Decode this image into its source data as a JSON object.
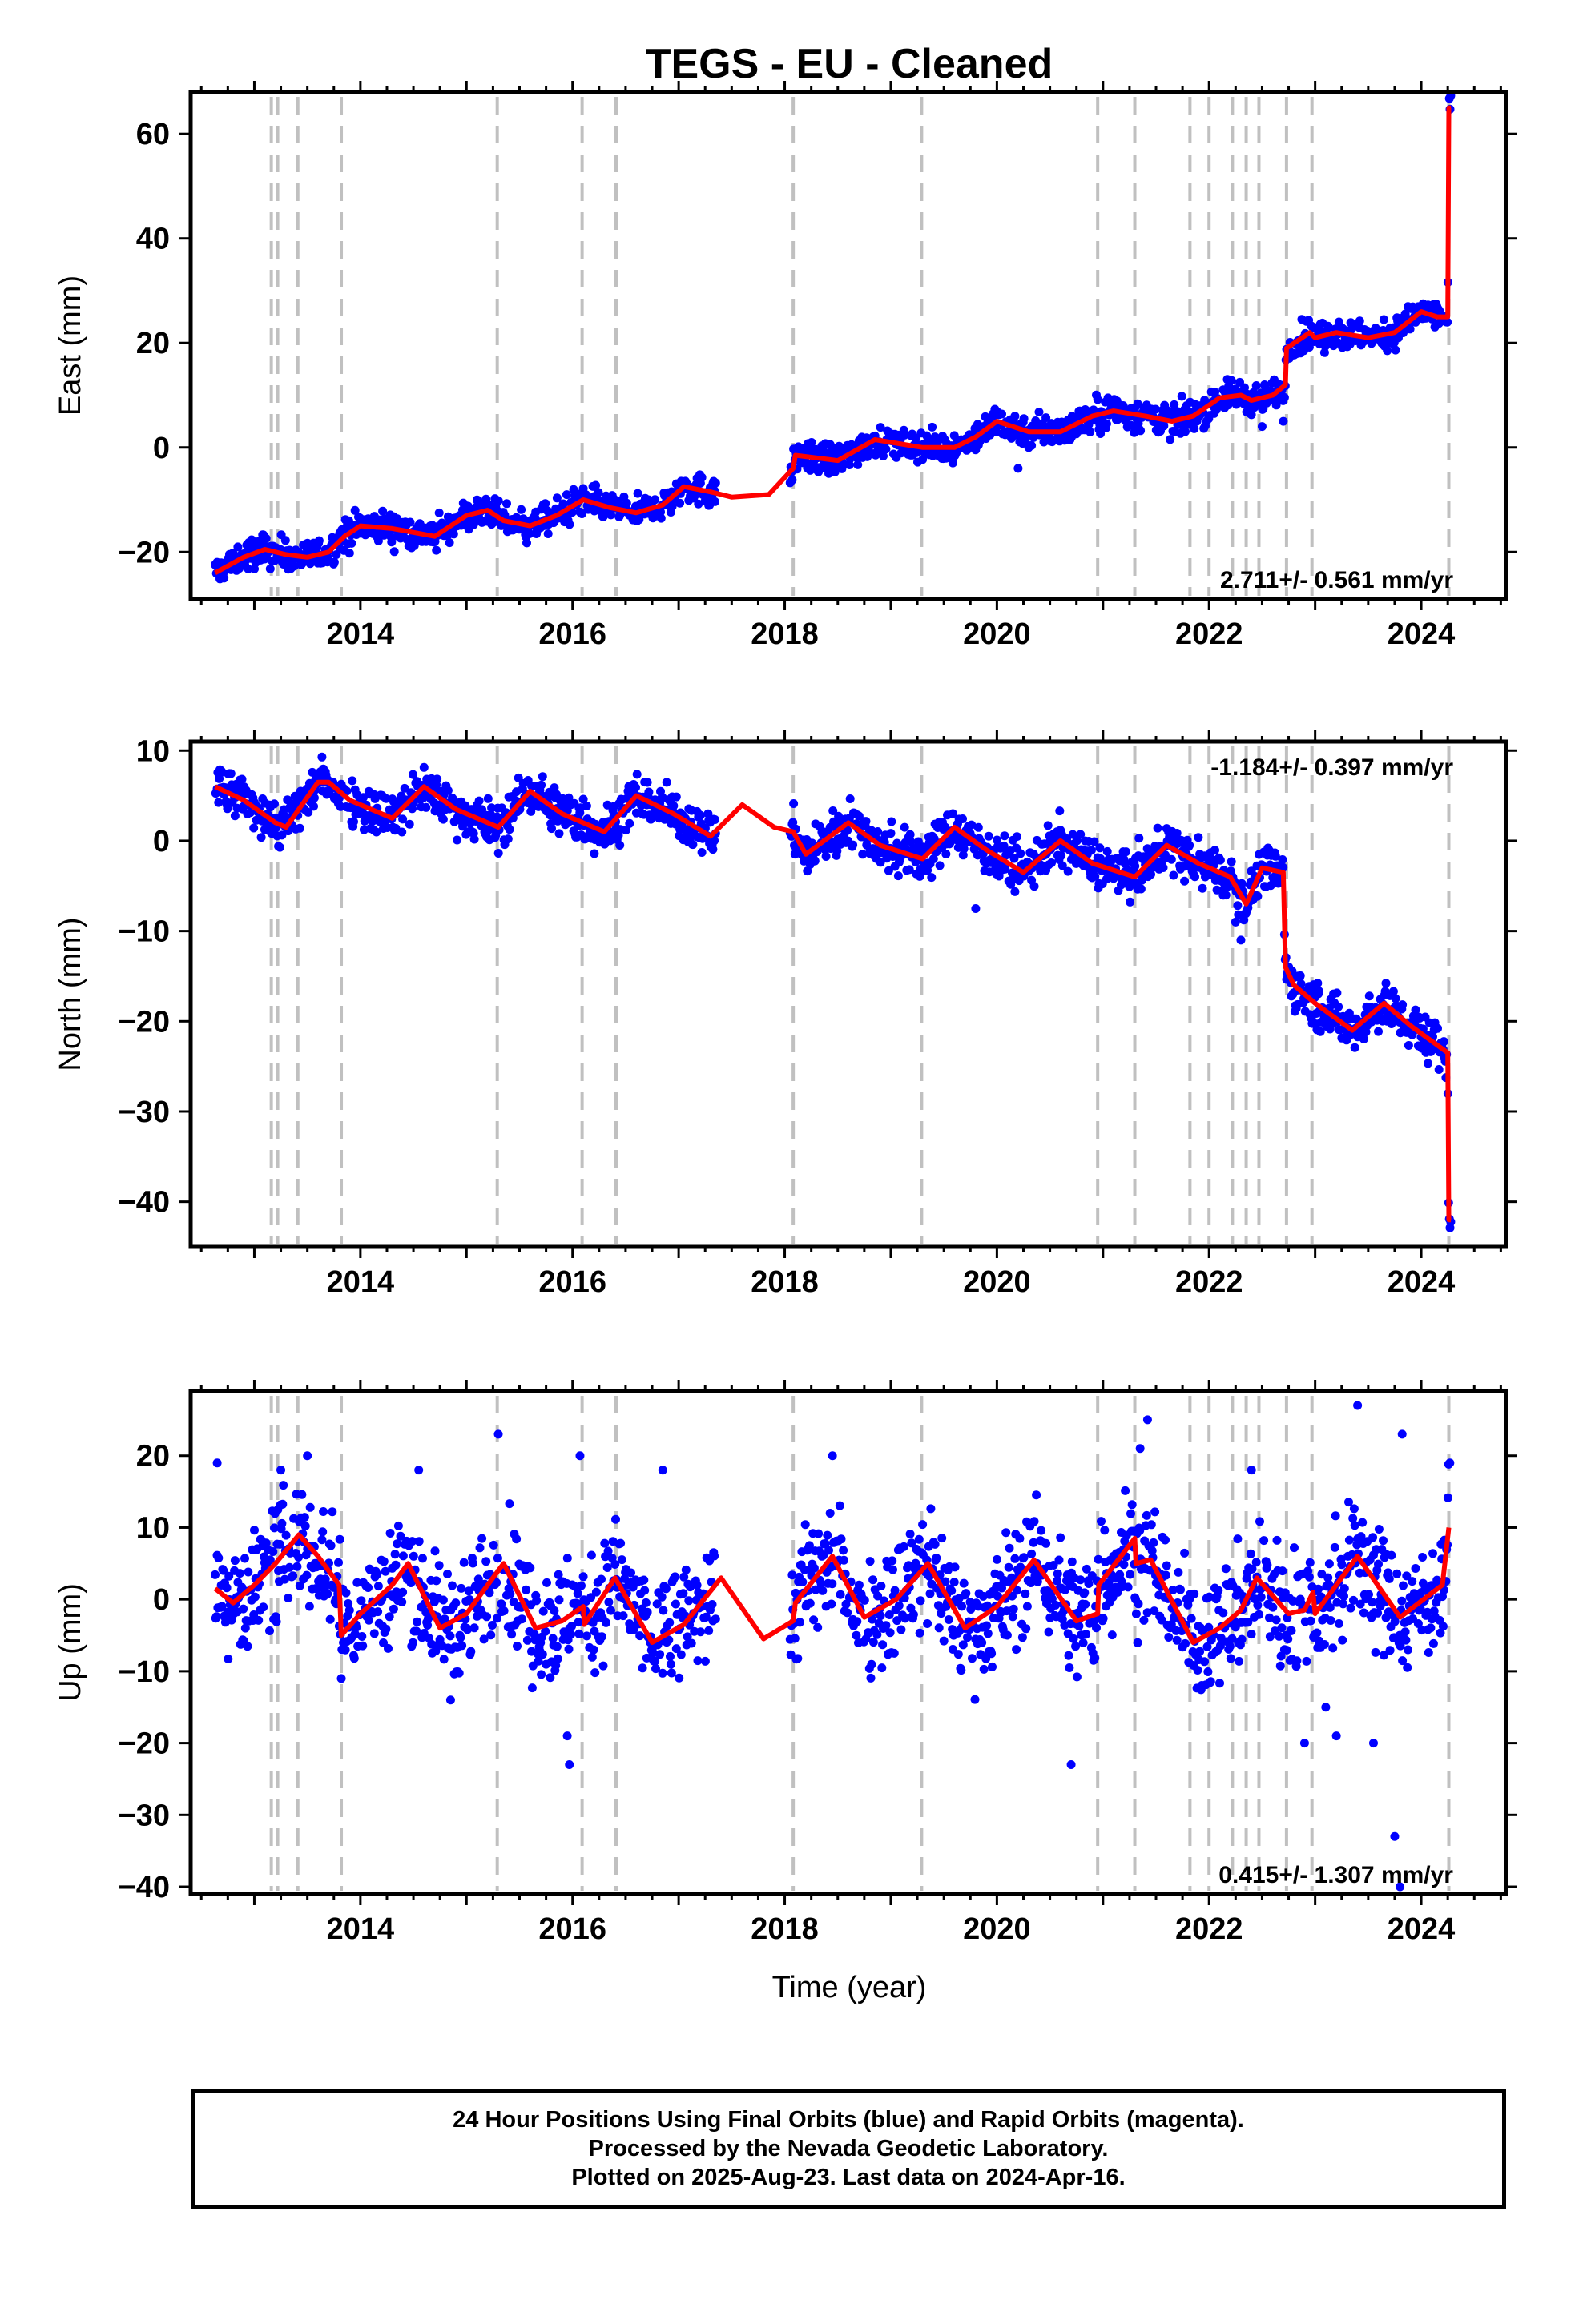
{
  "title": "TEGS  - EU - Cleaned",
  "x_axis_label": "Time (year)",
  "footer": {
    "line1": "24 Hour Positions Using Final Orbits (blue) and Rapid Orbits (magenta).",
    "line2": "Processed by the Nevada Geodetic Laboratory.",
    "line3": "Plotted on 2025-Aug-23. Last data on 2024-Apr-16."
  },
  "colors": {
    "data_points": "#0000ff",
    "model_fit": "#ff0000",
    "event_lines": "#c0c0c0",
    "axes": "#000000"
  },
  "chart_data": [
    {
      "type": "scatter",
      "component": "East",
      "ylabel": "East (mm)",
      "xlim": [
        2012.4,
        2024.8
      ],
      "ylim": [
        -29,
        68
      ],
      "yticks": [
        -20,
        0,
        20,
        40,
        60
      ],
      "xticks": [
        2014,
        2016,
        2018,
        2020,
        2022,
        2024
      ],
      "rate_text": "2.711+/- 0.561 mm/yr",
      "rate_position": "bottom-right",
      "noise": 1.5,
      "outliers": [
        [
          2020.2,
          -4
        ],
        [
          2022.5,
          4
        ],
        [
          2022.7,
          5
        ]
      ],
      "model": [
        [
          2012.63,
          -24
        ],
        [
          2012.9,
          -21
        ],
        [
          2013.1,
          -19.5
        ],
        [
          2013.3,
          -20.5
        ],
        [
          2013.5,
          -21
        ],
        [
          2013.7,
          -20
        ],
        [
          2013.85,
          -17
        ],
        [
          2014.0,
          -15
        ],
        [
          2014.3,
          -15.5
        ],
        [
          2014.7,
          -17
        ],
        [
          2015.0,
          -13
        ],
        [
          2015.2,
          -12
        ],
        [
          2015.35,
          -14
        ],
        [
          2015.6,
          -15
        ],
        [
          2015.85,
          -13
        ],
        [
          2016.1,
          -10
        ],
        [
          2016.35,
          -11.5
        ],
        [
          2016.6,
          -12.5
        ],
        [
          2016.85,
          -11
        ],
        [
          2017.05,
          -7.5
        ],
        [
          2017.3,
          -8.5
        ],
        [
          2017.5,
          -9.5
        ],
        [
          2017.85,
          -9
        ],
        [
          2018.08,
          -4
        ],
        [
          2018.1,
          -1.5
        ],
        [
          2018.5,
          -2.5
        ],
        [
          2018.85,
          1.5
        ],
        [
          2019.3,
          0
        ],
        [
          2019.6,
          0
        ],
        [
          2019.8,
          2
        ],
        [
          2020.0,
          5
        ],
        [
          2020.3,
          3
        ],
        [
          2020.6,
          3
        ],
        [
          2020.9,
          6
        ],
        [
          2021.1,
          7
        ],
        [
          2021.4,
          6
        ],
        [
          2021.65,
          5
        ],
        [
          2021.85,
          6
        ],
        [
          2022.1,
          9.5
        ],
        [
          2022.3,
          10
        ],
        [
          2022.4,
          9
        ],
        [
          2022.6,
          10
        ],
        [
          2022.72,
          12
        ],
        [
          2022.73,
          19
        ],
        [
          2022.95,
          22
        ],
        [
          2023.0,
          21
        ],
        [
          2023.2,
          22
        ],
        [
          2023.5,
          21
        ],
        [
          2023.75,
          22
        ],
        [
          2024.0,
          26
        ],
        [
          2024.15,
          25
        ],
        [
          2024.25,
          25
        ],
        [
          2024.26,
          65
        ],
        [
          2024.28,
          65
        ]
      ],
      "gaps": [
        [
          2017.35,
          2018.05
        ]
      ],
      "event_lines": [
        2013.16,
        2013.22,
        2013.41,
        2013.82,
        2015.29,
        2016.09,
        2016.41,
        2018.08,
        2019.29,
        2020.95,
        2021.3,
        2021.82,
        2022.0,
        2022.22,
        2022.35,
        2022.47,
        2022.73,
        2022.97,
        2024.26
      ]
    },
    {
      "type": "scatter",
      "component": "North",
      "ylabel": "North (mm)",
      "xlim": [
        2012.4,
        2024.8
      ],
      "ylim": [
        -45,
        11
      ],
      "yticks": [
        -40,
        -30,
        -20,
        -10,
        0,
        10
      ],
      "xticks": [
        2014,
        2016,
        2018,
        2020,
        2022,
        2024
      ],
      "rate_text": "-1.184+/- 0.397 mm/yr",
      "rate_position": "top-right",
      "noise": 1.3,
      "outliers": [
        [
          2019.8,
          -7.5
        ],
        [
          2022.25,
          -9
        ],
        [
          2022.3,
          -11
        ]
      ],
      "model": [
        [
          2012.63,
          6
        ],
        [
          2012.9,
          4.5
        ],
        [
          2013.2,
          2
        ],
        [
          2013.3,
          1.5
        ],
        [
          2013.6,
          6.5
        ],
        [
          2013.7,
          6.5
        ],
        [
          2013.9,
          4.5
        ],
        [
          2014.3,
          2.5
        ],
        [
          2014.6,
          6
        ],
        [
          2014.9,
          3.5
        ],
        [
          2015.3,
          1.5
        ],
        [
          2015.6,
          5.5
        ],
        [
          2015.9,
          3
        ],
        [
          2016.3,
          1
        ],
        [
          2016.6,
          5
        ],
        [
          2016.95,
          3
        ],
        [
          2017.3,
          0.5
        ],
        [
          2017.6,
          4
        ],
        [
          2017.9,
          1.5
        ],
        [
          2018.08,
          1
        ],
        [
          2018.2,
          -1.5
        ],
        [
          2018.6,
          2
        ],
        [
          2018.9,
          -0.5
        ],
        [
          2019.3,
          -2
        ],
        [
          2019.6,
          1.5
        ],
        [
          2019.9,
          -1
        ],
        [
          2020.25,
          -3.5
        ],
        [
          2020.6,
          0
        ],
        [
          2020.9,
          -2.5
        ],
        [
          2021.3,
          -4
        ],
        [
          2021.6,
          -0.5
        ],
        [
          2021.9,
          -2.5
        ],
        [
          2022.2,
          -4
        ],
        [
          2022.35,
          -7
        ],
        [
          2022.5,
          -3
        ],
        [
          2022.7,
          -3.5
        ],
        [
          2022.72,
          -14
        ],
        [
          2022.8,
          -16
        ],
        [
          2023.0,
          -18
        ],
        [
          2023.35,
          -21
        ],
        [
          2023.65,
          -18
        ],
        [
          2023.9,
          -20.5
        ],
        [
          2024.25,
          -23.5
        ],
        [
          2024.26,
          -42
        ],
        [
          2024.28,
          -42
        ]
      ],
      "gaps": [
        [
          2017.35,
          2018.05
        ]
      ],
      "event_lines": [
        2013.16,
        2013.22,
        2013.41,
        2013.82,
        2015.29,
        2016.09,
        2016.41,
        2018.08,
        2019.29,
        2020.95,
        2021.3,
        2021.82,
        2022.0,
        2022.22,
        2022.35,
        2022.47,
        2022.73,
        2022.97,
        2024.26
      ]
    },
    {
      "type": "scatter",
      "component": "Up",
      "ylabel": "Up (mm)",
      "xlim": [
        2012.4,
        2024.8
      ],
      "ylim": [
        -41,
        29
      ],
      "yticks": [
        -40,
        -30,
        -20,
        -10,
        0,
        10,
        20
      ],
      "xticks": [
        2014,
        2016,
        2018,
        2020,
        2022,
        2024
      ],
      "rate_text": "0.415+/- 1.307 mm/yr",
      "rate_position": "bottom-right",
      "noise": 4.2,
      "outliers": [
        [
          2012.65,
          19
        ],
        [
          2013.25,
          18
        ],
        [
          2013.5,
          20
        ],
        [
          2013.82,
          -11
        ],
        [
          2014.55,
          18
        ],
        [
          2014.85,
          -14
        ],
        [
          2015.3,
          23
        ],
        [
          2015.95,
          -19
        ],
        [
          2015.97,
          -23
        ],
        [
          2016.07,
          20
        ],
        [
          2016.85,
          18
        ],
        [
          2018.45,
          20
        ],
        [
          2020.7,
          -23
        ],
        [
          2021.35,
          21
        ],
        [
          2021.42,
          25
        ],
        [
          2022.4,
          18
        ],
        [
          2022.9,
          -20
        ],
        [
          2023.1,
          -15
        ],
        [
          2023.4,
          27
        ],
        [
          2023.2,
          -19
        ],
        [
          2023.55,
          -20
        ],
        [
          2023.75,
          -33
        ],
        [
          2023.8,
          -40
        ],
        [
          2023.82,
          23
        ],
        [
          2024.27,
          19
        ]
      ],
      "model": [
        [
          2012.63,
          1.5
        ],
        [
          2012.8,
          -0.5
        ],
        [
          2013.0,
          2
        ],
        [
          2013.2,
          5
        ],
        [
          2013.42,
          9
        ],
        [
          2013.6,
          6
        ],
        [
          2013.8,
          2
        ],
        [
          2013.82,
          -5
        ],
        [
          2014.0,
          -2
        ],
        [
          2014.3,
          2
        ],
        [
          2014.45,
          5
        ],
        [
          2014.75,
          -4
        ],
        [
          2015.0,
          -2
        ],
        [
          2015.35,
          5
        ],
        [
          2015.65,
          -4
        ],
        [
          2015.9,
          -3
        ],
        [
          2016.1,
          -1
        ],
        [
          2016.11,
          -3.5
        ],
        [
          2016.4,
          3
        ],
        [
          2016.75,
          -6
        ],
        [
          2017.05,
          -3.5
        ],
        [
          2017.4,
          3
        ],
        [
          2017.8,
          -5.5
        ],
        [
          2018.08,
          -3
        ],
        [
          2018.1,
          -0.5
        ],
        [
          2018.45,
          6
        ],
        [
          2018.75,
          -2.5
        ],
        [
          2019.05,
          0
        ],
        [
          2019.35,
          5
        ],
        [
          2019.7,
          -4
        ],
        [
          2020.0,
          -1
        ],
        [
          2020.35,
          5.5
        ],
        [
          2020.75,
          -3
        ],
        [
          2020.95,
          -2
        ],
        [
          2020.96,
          2
        ],
        [
          2021.3,
          8.5
        ],
        [
          2021.31,
          5
        ],
        [
          2021.45,
          5.5
        ],
        [
          2021.85,
          -6
        ],
        [
          2022.1,
          -4
        ],
        [
          2022.3,
          -1.5
        ],
        [
          2022.45,
          3
        ],
        [
          2022.75,
          -2
        ],
        [
          2022.9,
          -1.5
        ],
        [
          2022.98,
          1
        ],
        [
          2023.0,
          -2
        ],
        [
          2023.4,
          6
        ],
        [
          2023.8,
          -2.5
        ],
        [
          2024.2,
          2
        ],
        [
          2024.26,
          10
        ]
      ],
      "gaps": [
        [
          2017.35,
          2018.05
        ]
      ],
      "event_lines": [
        2013.16,
        2013.22,
        2013.41,
        2013.82,
        2015.29,
        2016.09,
        2016.41,
        2018.08,
        2019.29,
        2020.95,
        2021.3,
        2021.82,
        2022.0,
        2022.22,
        2022.35,
        2022.47,
        2022.73,
        2022.97,
        2024.26
      ]
    }
  ]
}
